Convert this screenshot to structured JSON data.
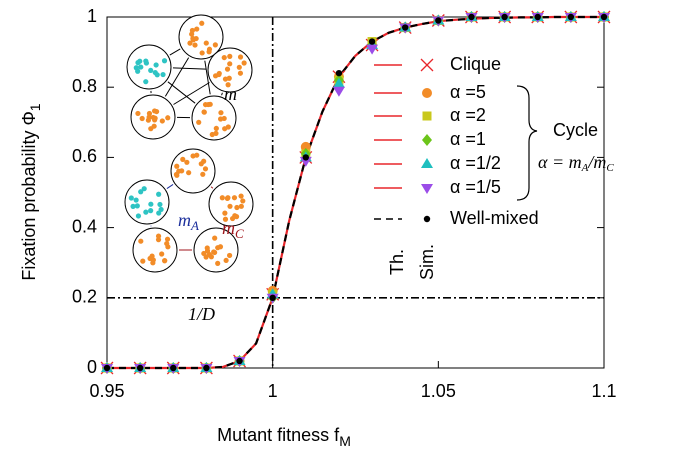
{
  "chart_data": {
    "type": "line",
    "xlabel": {
      "text": "Mutant fitness f",
      "sub": "M"
    },
    "ylabel": {
      "text": "Fixation probability Φ",
      "sub": "1"
    },
    "xlim": [
      0.95,
      1.1
    ],
    "ylim": [
      0,
      1
    ],
    "xticks": [
      0.95,
      1,
      1.05,
      1.1
    ],
    "yticks": [
      0,
      0.2,
      0.4,
      0.6,
      0.8,
      1
    ],
    "hline": 0.2,
    "vline": 1,
    "x": [
      0.95,
      0.96,
      0.97,
      0.98,
      0.99,
      1.0,
      1.01,
      1.02,
      1.03,
      1.04,
      1.05,
      1.06,
      1.07,
      1.08,
      1.09,
      1.1
    ],
    "series": [
      {
        "name": "Clique",
        "marker": "x",
        "color": "#e8262b",
        "line_color": "#e8262b",
        "line_dash": false,
        "values": [
          0,
          0,
          0,
          0,
          0.02,
          0.21,
          0.6,
          0.83,
          0.92,
          0.97,
          0.99,
          1,
          1,
          1,
          1,
          1
        ]
      },
      {
        "name": "α =5",
        "marker": "circle",
        "color": "#f28c28",
        "line_color": "#e8262b",
        "line_dash": false,
        "values": [
          0,
          0,
          0,
          0,
          0.02,
          0.22,
          0.63,
          0.83,
          0.92,
          0.97,
          0.99,
          1,
          1,
          1,
          1,
          1
        ]
      },
      {
        "name": "α =2",
        "marker": "square",
        "color": "#c9c81c",
        "line_color": "#e8262b",
        "line_dash": false,
        "values": [
          0,
          0,
          0,
          0,
          0.02,
          0.21,
          0.61,
          0.82,
          0.93,
          0.97,
          0.99,
          1,
          1,
          1,
          1,
          1
        ]
      },
      {
        "name": "α =1",
        "marker": "diamond",
        "color": "#6cc51a",
        "line_color": "#e8262b",
        "line_dash": false,
        "values": [
          0,
          0,
          0,
          0,
          0.02,
          0.2,
          0.61,
          0.82,
          0.92,
          0.97,
          0.99,
          1,
          1,
          1,
          1,
          1
        ]
      },
      {
        "name": "α =1/2",
        "marker": "triangle-up",
        "color": "#1fbfbf",
        "line_color": "#e8262b",
        "line_dash": false,
        "values": [
          0,
          0,
          0,
          0,
          0.02,
          0.21,
          0.6,
          0.81,
          0.92,
          0.97,
          0.99,
          1,
          1,
          1,
          1,
          1
        ]
      },
      {
        "name": "α =1/5",
        "marker": "triangle-down",
        "color": "#9b4de8",
        "line_color": "#e8262b",
        "line_dash": false,
        "values": [
          0,
          0,
          0,
          0,
          0.02,
          0.2,
          0.59,
          0.79,
          0.91,
          0.97,
          0.99,
          1,
          1,
          1,
          1,
          1
        ]
      },
      {
        "name": "Well-mixed",
        "marker": "dot",
        "color": "#000000",
        "line_color": "#000000",
        "line_dash": true,
        "values": [
          0,
          0,
          0,
          0,
          0.02,
          0.2,
          0.6,
          0.84,
          0.93,
          0.97,
          0.99,
          1,
          1,
          1,
          1,
          1
        ]
      }
    ],
    "theory": {
      "x": [
        0.95,
        0.955,
        0.96,
        0.965,
        0.97,
        0.975,
        0.98,
        0.985,
        0.99,
        0.995,
        1.0,
        1.005,
        1.01,
        1.015,
        1.02,
        1.025,
        1.03,
        1.035,
        1.04,
        1.045,
        1.05,
        1.055,
        1.06,
        1.065,
        1.07,
        1.075,
        1.08,
        1.085,
        1.09,
        1.095,
        1.1
      ],
      "series": [
        {
          "color": "#e8262b",
          "dash": false,
          "values": [
            0,
            0,
            0,
            0,
            0,
            0,
            0,
            0.003,
            0.02,
            0.07,
            0.2,
            0.42,
            0.6,
            0.73,
            0.83,
            0.89,
            0.93,
            0.955,
            0.97,
            0.98,
            0.988,
            0.992,
            0.995,
            0.997,
            0.998,
            0.999,
            0.999,
            1,
            1,
            1,
            1
          ]
        },
        {
          "color": "#000000",
          "dash": true,
          "values": [
            0,
            0,
            0,
            0,
            0,
            0,
            0,
            0.003,
            0.02,
            0.07,
            0.2,
            0.42,
            0.6,
            0.73,
            0.83,
            0.89,
            0.93,
            0.955,
            0.97,
            0.98,
            0.988,
            0.992,
            0.995,
            0.997,
            0.998,
            0.999,
            0.999,
            1,
            1,
            1,
            1
          ]
        }
      ]
    },
    "annotations": {
      "one_over_d": "1/D",
      "th": "Th.",
      "sim": "Sim.",
      "cycle": "Cycle",
      "alpha_def": {
        "lhs": "α = m",
        "a": "A",
        "slash": "/m",
        "c": "C"
      },
      "m": "m",
      "m_a": {
        "base": "m",
        "sub": "A"
      },
      "m_c": {
        "base": "m",
        "sub": "C"
      }
    }
  }
}
